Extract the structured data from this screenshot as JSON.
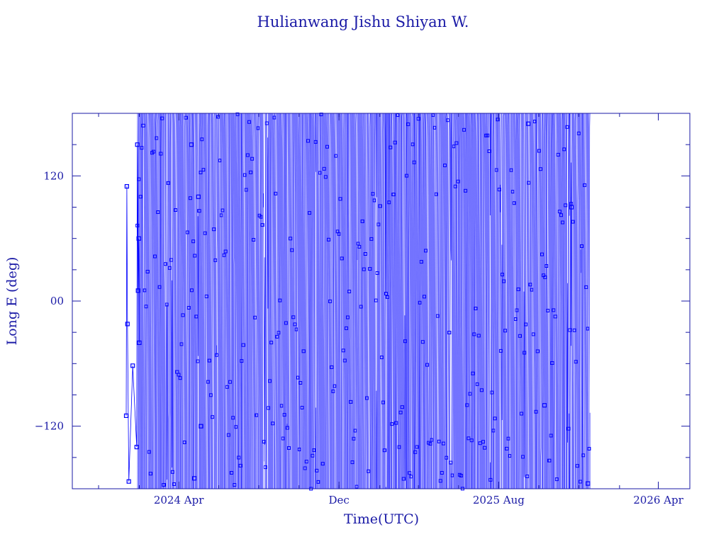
{
  "chart_data": {
    "type": "line",
    "title": "Hulianwang Jishu Shiyan W.",
    "xlabel": "Time(UTC)",
    "ylabel": "Long E (deg)",
    "xlim": [
      "2023-10-22",
      "2026-05-19"
    ],
    "ylim": [
      -180,
      180
    ],
    "grid": false,
    "line_color": "#0000ff",
    "axis_color": "#1a1aa6",
    "x_ticks": [
      {
        "date": "2024-04-01",
        "label": "2024 Apr"
      },
      {
        "date": "2024-12-01",
        "label": "Dec"
      },
      {
        "date": "2025-08-01",
        "label": "2025 Aug"
      },
      {
        "date": "2026-04-01",
        "label": "2026 Apr"
      }
    ],
    "y_ticks": [
      {
        "value": 120,
        "label": "120"
      },
      {
        "value": 0,
        "label": "00"
      },
      {
        "value": -120,
        "label": "−120"
      }
    ],
    "series": [
      {
        "x": [
          "2024-01-12",
          "2024-01-13",
          "2024-01-14",
          "2024-01-16",
          "2024-01-22",
          "2024-01-28",
          "2024-01-29",
          "2024-01-30",
          "2024-01-31",
          "2024-02-01"
        ],
        "y": [
          -110,
          110,
          -22,
          -173,
          -62,
          -140,
          150,
          10,
          60,
          -40
        ]
      }
    ],
    "dense_region": {
      "start": "2024-01-29",
      "end": "2025-12-18",
      "y_range": [
        -180,
        180
      ],
      "description_points": [
        {
          "date": "2024-04-20",
          "y": 150
        },
        {
          "date": "2024-04-25",
          "y": -170
        },
        {
          "date": "2024-05-01",
          "y": 100
        },
        {
          "date": "2024-05-05",
          "y": -120
        },
        {
          "date": "2025-09-15",
          "y": 170
        },
        {
          "date": "2025-10-10",
          "y": -100
        },
        {
          "date": "2025-11-20",
          "y": 90
        },
        {
          "date": "2025-12-15",
          "y": -175
        }
      ]
    }
  }
}
